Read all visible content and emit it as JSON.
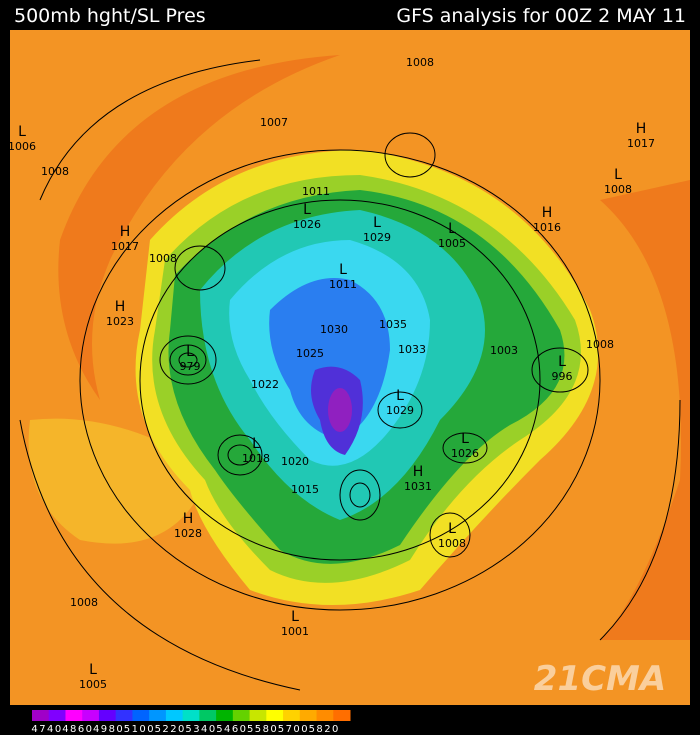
{
  "header": {
    "left": "500mb hght/SL Pres",
    "right": "GFS analysis for 00Z  2 MAY 11"
  },
  "systems": [
    {
      "symbol": "L",
      "value": 1006
    },
    {
      "value": 1008
    },
    {
      "symbol": "H",
      "value": 1017
    },
    {
      "value": 1008
    },
    {
      "symbol": "H",
      "value": 1023
    },
    {
      "symbol": "L",
      "value": 979
    },
    {
      "value": 1022
    },
    {
      "value": 1025
    },
    {
      "value": 1030
    },
    {
      "value": 1035
    },
    {
      "value": 1033
    },
    {
      "value": 1003
    },
    {
      "value": 1008
    },
    {
      "symbol": "H",
      "value": 1016
    },
    {
      "symbol": "H",
      "value": 1017
    },
    {
      "symbol": "L",
      "value": 1008
    },
    {
      "symbol": "L",
      "value": 1005
    },
    {
      "symbol": "L",
      "value": 1011
    },
    {
      "symbol": "L",
      "value": 1029
    },
    {
      "symbol": "L",
      "value": 1026
    },
    {
      "value": 1011
    },
    {
      "value": 1007
    },
    {
      "value": 1008
    },
    {
      "symbol": "L",
      "value": 996
    },
    {
      "symbol": "L",
      "value": 1029
    },
    {
      "symbol": "L",
      "value": 1026
    },
    {
      "symbol": "H",
      "value": 1031
    },
    {
      "symbol": "L",
      "value": 1008
    },
    {
      "symbol": "H",
      "value": 1028
    },
    {
      "value": 1008
    },
    {
      "symbol": "L",
      "value": 1001
    },
    {
      "symbol": "L",
      "value": 1005
    },
    {
      "value": 1015
    },
    {
      "symbol": "L",
      "value": 1018
    },
    {
      "value": 1020
    }
  ],
  "colorbar": {
    "labels": [
      4740,
      4860,
      4980,
      5100,
      5220,
      5340,
      5460,
      5580,
      5700,
      5820
    ]
  },
  "watermark": "21CMA"
}
